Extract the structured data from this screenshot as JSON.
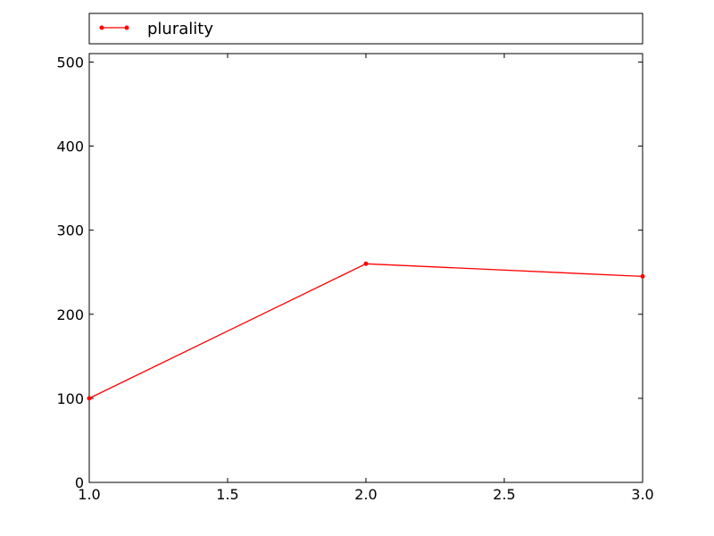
{
  "chart_data": {
    "type": "line",
    "title": "",
    "xlabel": "",
    "ylabel": "",
    "xlim": [
      1.0,
      3.0
    ],
    "ylim": [
      0,
      510
    ],
    "x_ticks": [
      1.0,
      1.5,
      2.0,
      2.5,
      3.0
    ],
    "x_tick_labels": [
      "1.0",
      "1.5",
      "2.0",
      "2.5",
      "3.0"
    ],
    "y_ticks": [
      0,
      100,
      200,
      300,
      400,
      500
    ],
    "y_tick_labels": [
      "0",
      "100",
      "200",
      "300",
      "400",
      "500"
    ],
    "grid": false,
    "legend_placement": "top, above plot",
    "series": [
      {
        "name": "plurality",
        "color": "#ff0000",
        "marker": "dot",
        "x": [
          1.0,
          2.0,
          3.0
        ],
        "y": [
          100,
          260,
          245
        ]
      }
    ]
  }
}
